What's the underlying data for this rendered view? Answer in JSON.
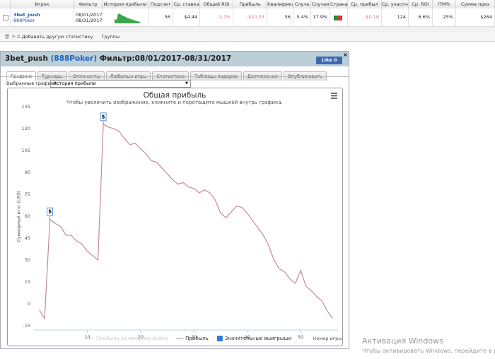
{
  "table": {
    "headers": [
      "Игрок",
      "Фильтр",
      "История прибыли",
      "Подсчет",
      "Ср. ставка",
      "Общий ROI",
      "Прибыль",
      "Квалифика",
      "Случа",
      "Случаи",
      "Страна",
      "Ср. прибыл",
      "Ср. участни",
      "Ср. ROI",
      "ITM%",
      "Сумма приз"
    ],
    "row": {
      "player": "3bet_push",
      "site": "888Poker",
      "date_from": "08/01/2017",
      "date_to": "08/31/2017",
      "stats": [
        "56",
        "$4.44",
        "-3.7%",
        "-$10.03",
        "56",
        "5.4%",
        "17.9%",
        "-$0.18",
        "124",
        "6.6%",
        "25%",
        "$264"
      ]
    }
  },
  "toolbar": {
    "add_stat": "Добавить другую статистику",
    "groups": "Группы"
  },
  "panel": {
    "player": "3bet_push",
    "site": "(888Poker)",
    "filter": "Фильтр:08/01/2017-08/31/2017",
    "like": "Like 0",
    "tabs": [
      "Графики",
      "Турниры",
      "Оппоненты",
      "Любимые игры",
      "Статистика",
      "Таблицы лидеров",
      "Достижения",
      "Опубликовать"
    ],
    "selected_label": "Выбранные графики:",
    "selected_value": "История прибыли"
  },
  "chart_data": {
    "type": "line",
    "title": "Общая прибыль",
    "subtitle": "Чтобы увеличить изображение, кликните и перетащите мышкой внутрь графика.",
    "y_label": "Суммарный итог (USD)",
    "x_label": "Номер игры",
    "x": [
      1,
      2,
      3,
      4,
      5,
      6,
      7,
      8,
      9,
      10,
      11,
      12,
      13,
      14,
      15,
      16,
      17,
      18,
      19,
      20,
      21,
      22,
      23,
      24,
      25,
      26,
      27,
      28,
      29,
      30,
      31,
      32,
      33,
      34,
      35,
      36,
      37,
      38,
      39,
      40,
      41,
      42,
      43,
      44,
      45,
      46,
      47,
      48,
      49,
      50,
      51,
      52,
      53,
      54,
      55,
      56
    ],
    "series": [
      {
        "name": "Прибыль",
        "color": "#c48a98",
        "values": [
          -4,
          -10,
          58,
          55,
          53,
          47,
          47,
          43,
          41,
          36,
          33,
          30,
          123,
          121,
          120,
          118,
          113,
          109,
          110,
          106,
          103,
          98,
          97,
          93,
          89,
          85,
          82,
          83,
          80,
          79,
          76,
          78,
          76,
          71,
          62,
          59,
          63,
          67,
          66,
          62,
          57,
          52,
          47,
          40,
          30,
          24,
          22,
          17,
          14,
          23,
          12,
          9,
          5,
          2,
          -5,
          -10
        ]
      }
    ],
    "hidden_series": [
      {
        "name": "Прибыль за минусом рейка",
        "color": "#cccccc"
      }
    ],
    "markers": {
      "name": "Значительные выигрыши",
      "color": "#2f7ed8",
      "points": [
        {
          "x": 3,
          "label": "$"
        },
        {
          "x": 13,
          "label": "$"
        }
      ]
    },
    "xlim": [
      0,
      57
    ],
    "xticks": [
      10,
      20,
      30,
      40,
      50
    ],
    "ylim": [
      -15,
      135
    ],
    "yticks": [
      -15,
      0,
      15,
      30,
      45,
      60,
      75,
      90,
      105,
      120,
      135
    ],
    "grid": false
  },
  "watermark": {
    "title": "Активация Windows",
    "text": "Чтобы активировать Windows, перейдите в р"
  }
}
